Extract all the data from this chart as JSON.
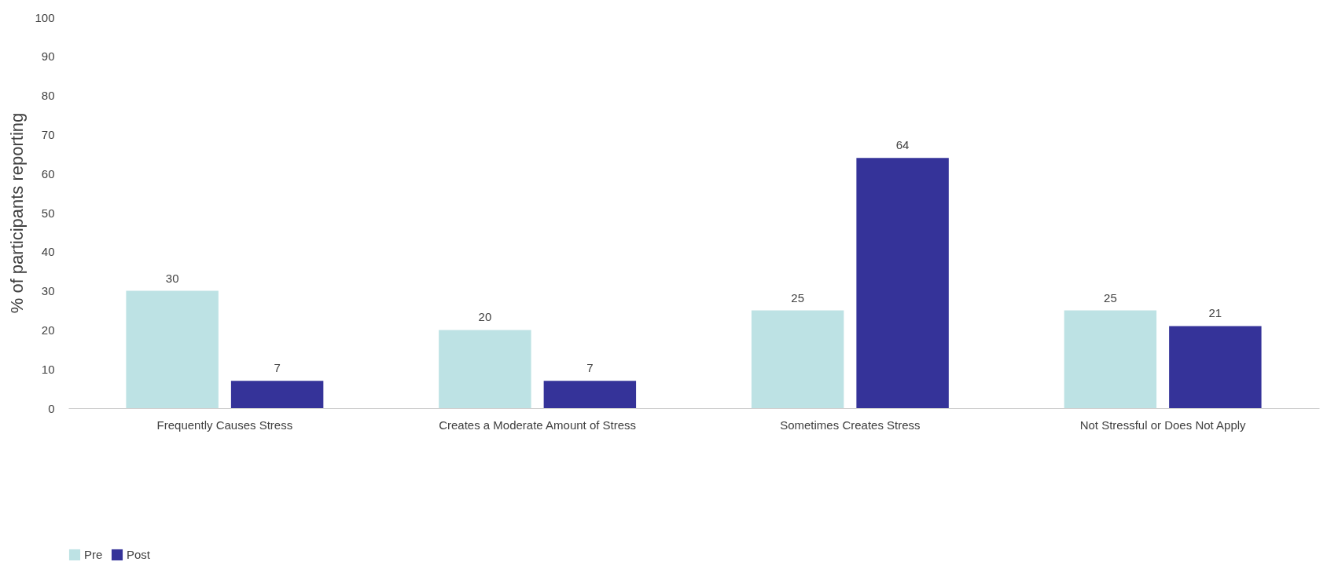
{
  "chart_data": {
    "type": "bar",
    "ylabel": "% of participants reporting",
    "categories": [
      "Frequently Causes Stress",
      "Creates a Moderate Amount of Stress",
      "Sometimes Creates Stress",
      "Not Stressful or Does Not Apply"
    ],
    "series": [
      {
        "name": "Pre",
        "color": "#bde2e4",
        "values": [
          30,
          20,
          25,
          25
        ]
      },
      {
        "name": "Post",
        "color": "#353399",
        "values": [
          7,
          7,
          64,
          21
        ]
      }
    ],
    "ylim": [
      0,
      100
    ],
    "yticks": [
      0,
      10,
      20,
      30,
      40,
      50,
      60,
      70,
      80,
      90,
      100
    ],
    "grid": false,
    "legend": "bottom",
    "data_labels": true
  }
}
